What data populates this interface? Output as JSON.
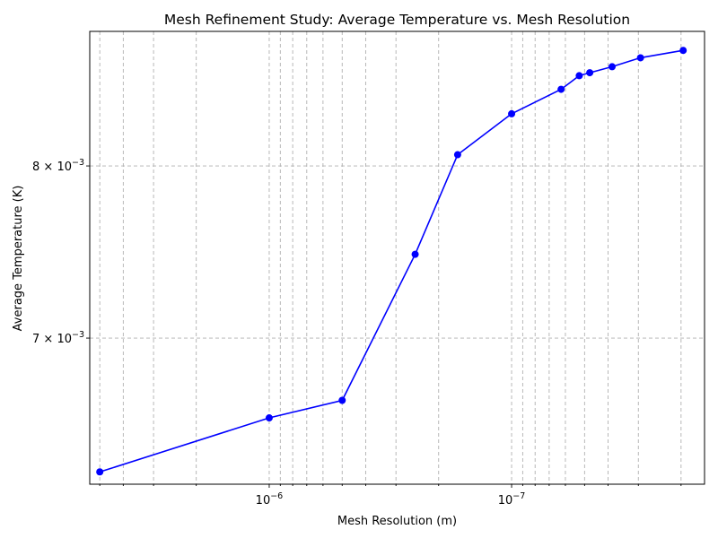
{
  "chart_data": {
    "type": "line",
    "title": "Mesh Refinement Study: Average Temperature vs. Mesh Resolution",
    "xlabel": "Mesh Resolution (m)",
    "ylabel": "Average Temperature (K)",
    "xscale": "log",
    "yscale": "log",
    "x_inverted": true,
    "xlim": [
      5.5e-06,
      1.6e-08
    ],
    "ylim": [
      0.00625,
      0.00888
    ],
    "grid": true,
    "x_tick_labels": [
      {
        "base": "10",
        "exp": "−6",
        "value": 1e-06
      },
      {
        "base": "10",
        "exp": "−7",
        "value": 1e-07
      }
    ],
    "y_tick_labels": [
      {
        "mantissa": "8",
        "base": "10",
        "exp": "−3",
        "value": 0.008
      },
      {
        "mantissa": "7",
        "base": "10",
        "exp": "−3",
        "value": 0.007
      }
    ],
    "series": [
      {
        "color": "#0000ff",
        "marker": "circle",
        "x": [
          5e-06,
          1e-06,
          5e-07,
          2.5e-07,
          1.67e-07,
          1e-07,
          6.25e-08,
          5.26e-08,
          4.76e-08,
          3.85e-08,
          2.94e-08,
          1.96e-08
        ],
        "y": [
          0.00631,
          0.00658,
          0.00667,
          0.00747,
          0.00807,
          0.00833,
          0.00849,
          0.00858,
          0.0086,
          0.00864,
          0.0087,
          0.00875
        ]
      }
    ]
  }
}
